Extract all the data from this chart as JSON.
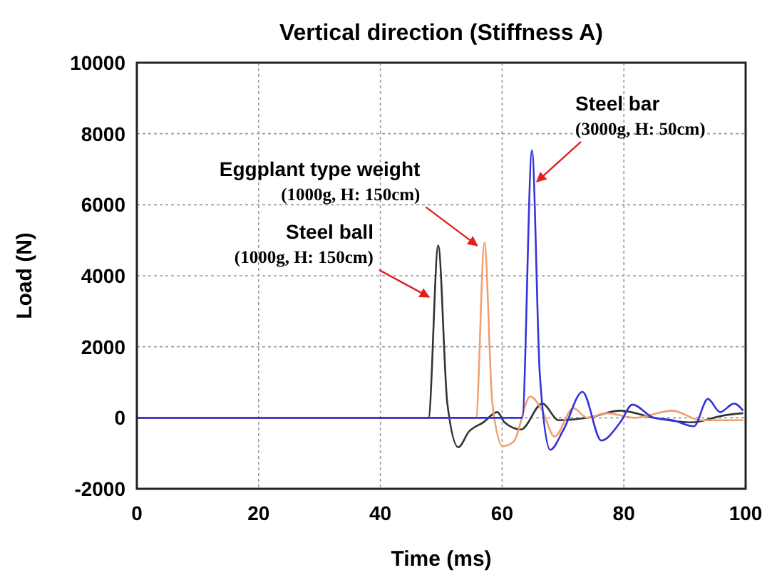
{
  "chart_data": {
    "type": "line",
    "title": "Vertical direction (Stiffness A)",
    "xlabel": "Time (ms)",
    "ylabel": "Load (N)",
    "xlim": [
      0,
      100
    ],
    "xticks": [
      0,
      20,
      40,
      60,
      80,
      100
    ],
    "ylim": [
      -2000,
      10000
    ],
    "yticks": [
      -2000,
      0,
      2000,
      4000,
      6000,
      8000,
      10000
    ],
    "grid": true,
    "line_style": "solid",
    "marker": "none",
    "series": [
      {
        "color": "#333333",
        "x": [
          0,
          47.9,
          49.5,
          51.0,
          52.8,
          54.5,
          56.9,
          59.2,
          60.4,
          63.1,
          66.6,
          69.3,
          74.0,
          79.4,
          84.9,
          91.1,
          96.5,
          99.6
        ],
        "values": [
          0,
          0,
          4850,
          400,
          -830,
          -400,
          -130,
          160,
          -130,
          -330,
          400,
          -70,
          0,
          200,
          0,
          -130,
          70,
          130
        ]
      },
      {
        "color": "#f0a070",
        "x": [
          0,
          55.7,
          57.1,
          58.4,
          60.1,
          61.9,
          64.6,
          66.6,
          68.6,
          71.7,
          74.0,
          77.1,
          81.8,
          88.0,
          92.7,
          99.6
        ],
        "values": [
          0,
          0,
          4930,
          400,
          -800,
          -670,
          600,
          200,
          -530,
          270,
          0,
          130,
          0,
          200,
          -70,
          -70
        ]
      },
      {
        "color": "#3333dd",
        "x": [
          0,
          63.3,
          64.9,
          66.2,
          67.9,
          70.1,
          73.2,
          76.3,
          79.4,
          81.4,
          84.9,
          88.0,
          91.5,
          93.8,
          95.8,
          98.1,
          99.6
        ],
        "values": [
          0,
          0,
          7530,
          1200,
          -900,
          -330,
          730,
          -640,
          -130,
          370,
          0,
          -70,
          -240,
          530,
          160,
          400,
          200
        ]
      }
    ],
    "annotations": [
      {
        "text": "Steel ball\n(1000g, H: 150cm)",
        "x": 48.0,
        "y": 3400
      },
      {
        "text": "Eggplant type weight\n(1000g, H: 150cm)",
        "x": 55.9,
        "y": 4850
      },
      {
        "text": "Steel bar\n(3000g, H: 50cm)",
        "x": 65.7,
        "y": 6650
      }
    ]
  }
}
